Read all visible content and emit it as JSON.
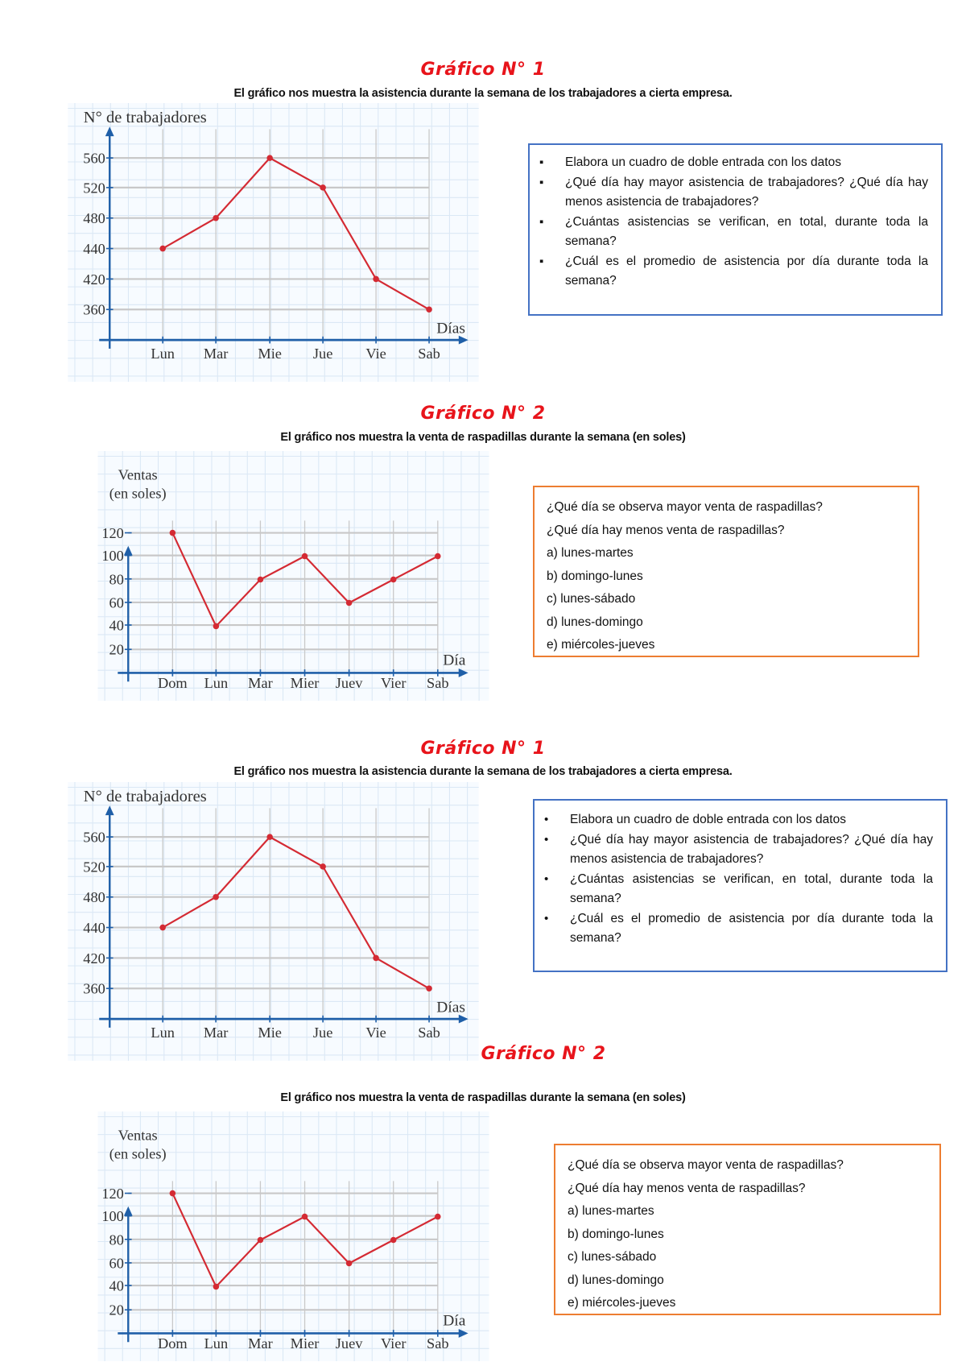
{
  "sections": [
    {
      "title": "Gráfico N° 1",
      "subtitle": "El gráfico nos muestra la asistencia durante la semana de los trabajadores a cierta empresa.",
      "questions": {
        "bullet": "▪",
        "items": [
          "Elabora un cuadro de doble entrada con los datos",
          "¿Qué día hay mayor asistencia de trabajadores? ¿Qué día hay menos asistencia de trabajadores?",
          "¿Cuántas asistencias se verifican, en total, durante toda la semana?",
          "¿Cuál es el promedio de asistencia por día durante toda la semana?"
        ]
      }
    },
    {
      "title": "Gráfico N° 2",
      "subtitle": "El gráfico nos muestra la venta de raspadillas durante la semana (en soles)",
      "questions": {
        "lines": [
          "¿Qué día se observa mayor venta de raspadillas?",
          "¿Qué día hay menos venta de raspadillas?",
          "a) lunes-martes",
          "b) domingo-lunes",
          "c) lunes-sábado",
          "d) lunes-domingo",
          "e) miércoles-jueves"
        ]
      }
    },
    {
      "title": "Gráfico N° 1",
      "subtitle": "El gráfico nos muestra la asistencia durante la semana de los trabajadores a cierta empresa.",
      "questions": {
        "bullet": "•",
        "items": [
          "Elabora un cuadro de doble entrada con los datos",
          "¿Qué día hay mayor asistencia de trabajadores? ¿Qué día hay menos asistencia de trabajadores?",
          "¿Cuántas asistencias se verifican, en total, durante toda la semana?",
          "¿Cuál es el promedio de asistencia por día durante toda la semana?"
        ]
      }
    },
    {
      "title": "Gráfico N° 2",
      "subtitle": "El gráfico nos muestra la venta de raspadillas durante la semana (en soles)",
      "questions": {
        "lines": [
          "¿Qué día se observa mayor venta de raspadillas?",
          "¿Qué día hay menos venta de raspadillas?",
          "a) lunes-martes",
          "b) domingo-lunes",
          "c) lunes-sábado",
          "d) lunes-domingo",
          "e) miércoles-jueves"
        ]
      }
    }
  ],
  "colors": {
    "line": "#d42a33",
    "axis": "#1f5fa8",
    "grid_major": "#c8c8c8",
    "grid_minor": "#dbe8f5",
    "title": "#e8141b",
    "box_blue": "#4472c4",
    "box_orange": "#ed7d31"
  },
  "chart_data": [
    {
      "type": "line",
      "ylabel": "N° de trabajadores",
      "xlabel": "Días",
      "categories": [
        "Lun",
        "Mar",
        "Mie",
        "Jue",
        "Vie",
        "Sab"
      ],
      "yticks": [
        360,
        420,
        440,
        480,
        520,
        560
      ],
      "values": [
        440,
        480,
        560,
        520,
        420,
        360
      ],
      "grid": true
    },
    {
      "type": "line",
      "ylabel": [
        "Ventas",
        "(en soles)"
      ],
      "xlabel": "Día",
      "categories": [
        "Dom",
        "Lun",
        "Mar",
        "Mier",
        "Juev",
        "Vier",
        "Sab"
      ],
      "yticks": [
        20,
        40,
        60,
        80,
        100,
        120
      ],
      "values": [
        120,
        40,
        80,
        100,
        60,
        80,
        100
      ],
      "ylim": [
        0,
        120
      ],
      "grid": true
    },
    {
      "type": "line",
      "ylabel": "N° de trabajadores",
      "xlabel": "Días",
      "categories": [
        "Lun",
        "Mar",
        "Mie",
        "Jue",
        "Vie",
        "Sab"
      ],
      "yticks": [
        360,
        420,
        440,
        480,
        520,
        560
      ],
      "values": [
        440,
        480,
        560,
        520,
        420,
        360
      ],
      "grid": true
    },
    {
      "type": "line",
      "ylabel": [
        "Ventas",
        "(en soles)"
      ],
      "xlabel": "Día",
      "categories": [
        "Dom",
        "Lun",
        "Mar",
        "Mier",
        "Juev",
        "Vier",
        "Sab"
      ],
      "yticks": [
        20,
        40,
        60,
        80,
        100,
        120
      ],
      "values": [
        120,
        40,
        80,
        100,
        60,
        80,
        100
      ],
      "ylim": [
        0,
        120
      ],
      "grid": true
    }
  ]
}
